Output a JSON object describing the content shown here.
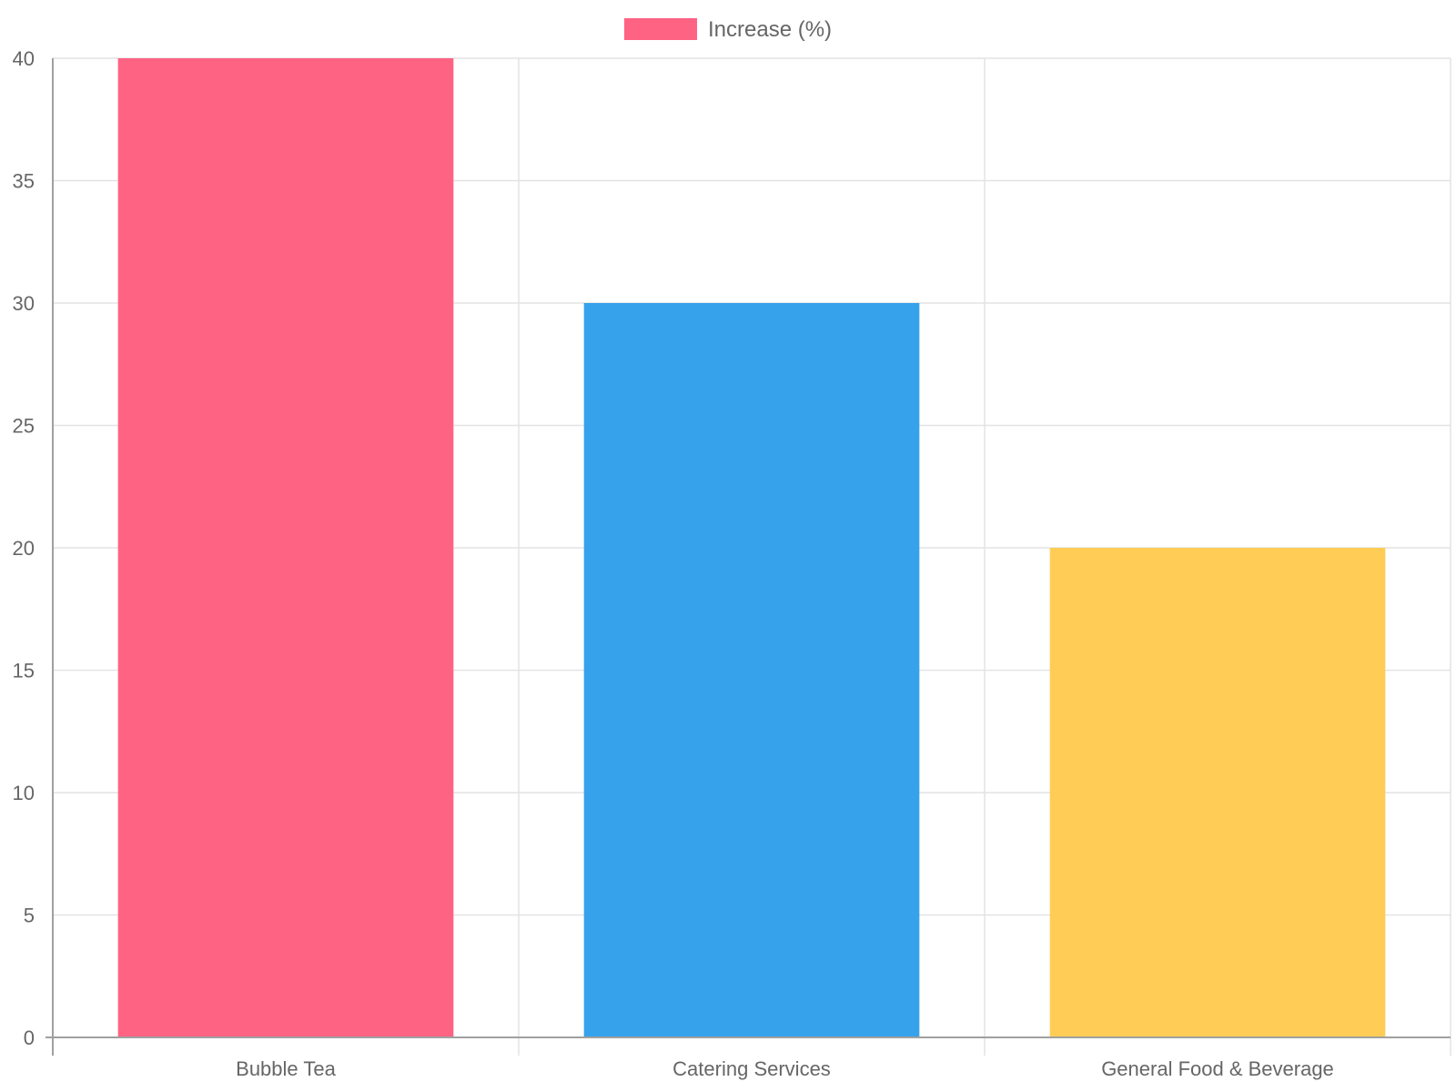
{
  "chart_data": {
    "type": "bar",
    "categories": [
      "Bubble Tea",
      "Catering Services",
      "General Food & Beverage"
    ],
    "series": [
      {
        "name": "Increase (%)",
        "values": [
          40,
          30,
          20
        ],
        "colors": [
          "#ff6384",
          "#36a2eb",
          "#ffcd56"
        ]
      }
    ],
    "ylim": [
      0,
      40
    ],
    "yticks": [
      0,
      5,
      10,
      15,
      20,
      25,
      30,
      35,
      40
    ],
    "grid": true,
    "legend_position": "top-center",
    "legend_color": "#ff6384",
    "title": "",
    "xlabel": "",
    "ylabel": ""
  }
}
